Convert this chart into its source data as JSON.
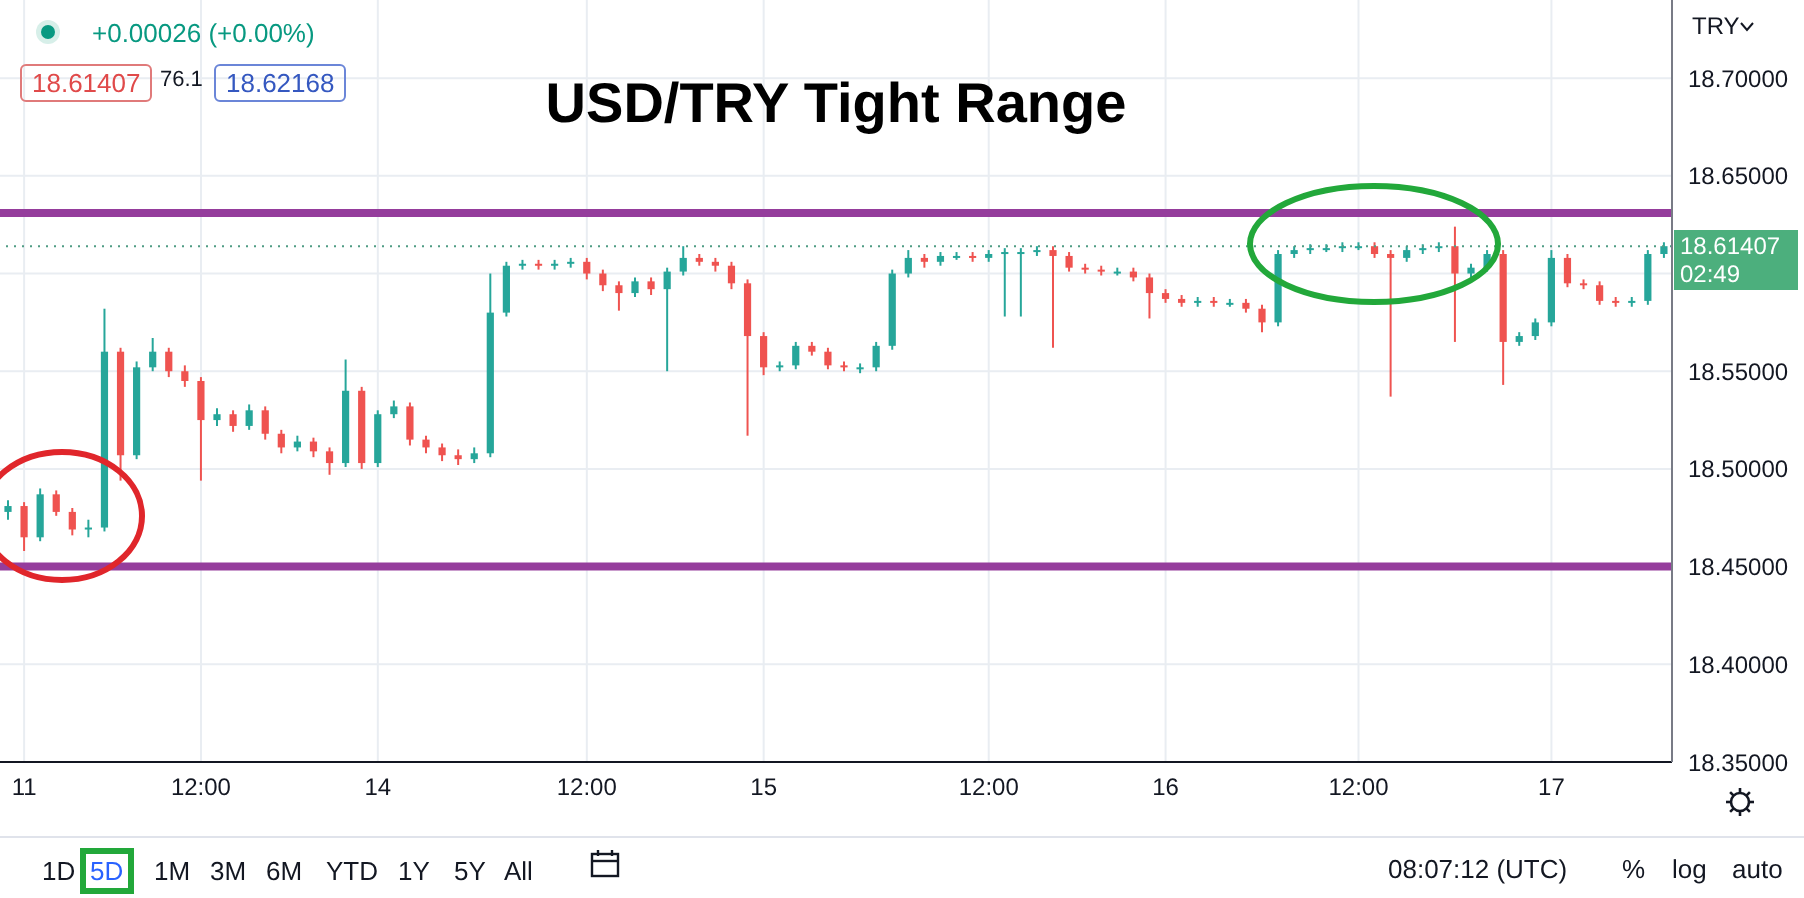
{
  "chart_data": {
    "type": "candlestick",
    "title": "USD/TRY Tight Range",
    "ylabel": "TRY",
    "categories": [
      null,
      "11",
      null,
      null,
      null,
      null,
      null,
      null,
      null,
      null,
      null,
      null,
      "12:00",
      null,
      null,
      null,
      null,
      null,
      null,
      null,
      null,
      null,
      null,
      "14",
      null,
      null,
      null,
      null,
      null,
      null,
      null,
      null,
      null,
      null,
      null,
      null,
      "12:00",
      null,
      null,
      null,
      null,
      null,
      null,
      null,
      null,
      null,
      null,
      "15",
      null,
      null,
      null,
      null,
      null,
      null,
      null,
      null,
      null,
      null,
      null,
      null,
      null,
      "12:00",
      null,
      null,
      null,
      null,
      null,
      null,
      null,
      null,
      null,
      null,
      "16",
      null,
      null,
      null,
      null,
      null,
      null,
      null,
      null,
      null,
      null,
      null,
      "12:00",
      null,
      null,
      null,
      null,
      null,
      null,
      null,
      null,
      null,
      null,
      null,
      "17",
      null,
      null,
      null,
      null,
      null,
      null,
      null
    ],
    "ohlc": [
      [
        18.478,
        18.484,
        18.474,
        18.481
      ],
      [
        18.481,
        18.483,
        18.458,
        18.465
      ],
      [
        18.465,
        18.49,
        18.463,
        18.487
      ],
      [
        18.487,
        18.489,
        18.476,
        18.478
      ],
      [
        18.478,
        18.48,
        18.466,
        18.469
      ],
      [
        18.469,
        18.474,
        18.465,
        18.47
      ],
      [
        18.47,
        18.582,
        18.468,
        18.56
      ],
      [
        18.56,
        18.562,
        18.494,
        18.507
      ],
      [
        18.507,
        18.555,
        18.505,
        18.552
      ],
      [
        18.552,
        18.567,
        18.55,
        18.56
      ],
      [
        18.56,
        18.562,
        18.547,
        18.55
      ],
      [
        18.55,
        18.553,
        18.542,
        18.545
      ],
      [
        18.545,
        18.547,
        18.494,
        18.525
      ],
      [
        18.525,
        18.531,
        18.522,
        18.528
      ],
      [
        18.528,
        18.53,
        18.519,
        18.522
      ],
      [
        18.522,
        18.533,
        18.52,
        18.53
      ],
      [
        18.53,
        18.532,
        18.515,
        18.518
      ],
      [
        18.518,
        18.52,
        18.508,
        18.511
      ],
      [
        18.511,
        18.517,
        18.509,
        18.514
      ],
      [
        18.514,
        18.516,
        18.506,
        18.509
      ],
      [
        18.509,
        18.511,
        18.497,
        18.503
      ],
      [
        18.503,
        18.556,
        18.501,
        18.54
      ],
      [
        18.54,
        18.542,
        18.5,
        18.503
      ],
      [
        18.503,
        18.53,
        18.501,
        18.528
      ],
      [
        18.528,
        18.535,
        18.526,
        18.532
      ],
      [
        18.532,
        18.534,
        18.512,
        18.515
      ],
      [
        18.515,
        18.517,
        18.508,
        18.511
      ],
      [
        18.511,
        18.513,
        18.504,
        18.507
      ],
      [
        18.507,
        18.51,
        18.502,
        18.505
      ],
      [
        18.505,
        18.511,
        18.503,
        18.508
      ],
      [
        18.508,
        18.6,
        18.506,
        18.58
      ],
      [
        18.58,
        18.606,
        18.578,
        18.604
      ],
      [
        18.604,
        18.607,
        18.602,
        18.605
      ],
      [
        18.605,
        18.607,
        18.602,
        18.604
      ],
      [
        18.604,
        18.607,
        18.602,
        18.605
      ],
      [
        18.605,
        18.608,
        18.603,
        18.606
      ],
      [
        18.606,
        18.608,
        18.597,
        18.6
      ],
      [
        18.6,
        18.602,
        18.591,
        18.594
      ],
      [
        18.594,
        18.596,
        18.581,
        18.59
      ],
      [
        18.59,
        18.598,
        18.588,
        18.596
      ],
      [
        18.596,
        18.598,
        18.589,
        18.592
      ],
      [
        18.592,
        18.603,
        18.55,
        18.601
      ],
      [
        18.601,
        18.614,
        18.599,
        18.608
      ],
      [
        18.608,
        18.61,
        18.604,
        18.606
      ],
      [
        18.606,
        18.608,
        18.601,
        18.604
      ],
      [
        18.604,
        18.606,
        18.592,
        18.595
      ],
      [
        18.595,
        18.597,
        18.517,
        18.568
      ],
      [
        18.568,
        18.57,
        18.548,
        18.552
      ],
      [
        18.552,
        18.555,
        18.55,
        18.553
      ],
      [
        18.553,
        18.565,
        18.551,
        18.563
      ],
      [
        18.563,
        18.565,
        18.558,
        18.56
      ],
      [
        18.56,
        18.562,
        18.551,
        18.553
      ],
      [
        18.553,
        18.555,
        18.55,
        18.552
      ],
      [
        18.552,
        18.554,
        18.549,
        18.552
      ],
      [
        18.552,
        18.565,
        18.55,
        18.563
      ],
      [
        18.563,
        18.602,
        18.561,
        18.6
      ],
      [
        18.6,
        18.612,
        18.598,
        18.608
      ],
      [
        18.608,
        18.61,
        18.603,
        18.606
      ],
      [
        18.606,
        18.611,
        18.604,
        18.609
      ],
      [
        18.609,
        18.611,
        18.607,
        18.609
      ],
      [
        18.609,
        18.611,
        18.606,
        18.608
      ],
      [
        18.608,
        18.612,
        18.606,
        18.61
      ],
      [
        18.61,
        18.613,
        18.578,
        18.611
      ],
      [
        18.611,
        18.613,
        18.578,
        18.611
      ],
      [
        18.611,
        18.614,
        18.609,
        18.612
      ],
      [
        18.612,
        18.614,
        18.562,
        18.609
      ],
      [
        18.609,
        18.611,
        18.601,
        18.603
      ],
      [
        18.603,
        18.605,
        18.6,
        18.602
      ],
      [
        18.602,
        18.604,
        18.599,
        18.601
      ],
      [
        18.601,
        18.603,
        18.599,
        18.601
      ],
      [
        18.601,
        18.603,
        18.596,
        18.598
      ],
      [
        18.598,
        18.6,
        18.577,
        18.59
      ],
      [
        18.59,
        18.592,
        18.585,
        18.587
      ],
      [
        18.587,
        18.589,
        18.583,
        18.585
      ],
      [
        18.585,
        18.588,
        18.583,
        18.586
      ],
      [
        18.586,
        18.588,
        18.583,
        18.585
      ],
      [
        18.585,
        18.587,
        18.583,
        18.585
      ],
      [
        18.585,
        18.587,
        18.58,
        18.582
      ],
      [
        18.582,
        18.584,
        18.57,
        18.575
      ],
      [
        18.575,
        18.612,
        18.573,
        18.61
      ],
      [
        18.61,
        18.614,
        18.608,
        18.612
      ],
      [
        18.612,
        18.615,
        18.61,
        18.613
      ],
      [
        18.613,
        18.615,
        18.611,
        18.613
      ],
      [
        18.613,
        18.616,
        18.611,
        18.614
      ],
      [
        18.614,
        18.616,
        18.612,
        18.614
      ],
      [
        18.614,
        18.616,
        18.608,
        18.61
      ],
      [
        18.61,
        18.612,
        18.537,
        18.608
      ],
      [
        18.608,
        18.614,
        18.606,
        18.612
      ],
      [
        18.612,
        18.615,
        18.61,
        18.613
      ],
      [
        18.613,
        18.616,
        18.611,
        18.614
      ],
      [
        18.614,
        18.624,
        18.565,
        18.6
      ],
      [
        18.6,
        18.605,
        18.598,
        18.603
      ],
      [
        18.603,
        18.612,
        18.601,
        18.61
      ],
      [
        18.61,
        18.612,
        18.543,
        18.565
      ],
      [
        18.565,
        18.57,
        18.563,
        18.568
      ],
      [
        18.568,
        18.577,
        18.566,
        18.575
      ],
      [
        18.575,
        18.612,
        18.573,
        18.608
      ],
      [
        18.608,
        18.61,
        18.593,
        18.595
      ],
      [
        18.595,
        18.597,
        18.592,
        18.594
      ],
      [
        18.594,
        18.596,
        18.584,
        18.586
      ],
      [
        18.586,
        18.588,
        18.583,
        18.585
      ],
      [
        18.585,
        18.588,
        18.583,
        18.586
      ],
      [
        18.586,
        18.612,
        18.584,
        18.61
      ],
      [
        18.61,
        18.616,
        18.608,
        18.614
      ]
    ],
    "ylim": [
      18.35,
      18.74
    ],
    "yticks": [
      {
        "value": 18.35,
        "label": "18.35000"
      },
      {
        "value": 18.4,
        "label": "18.40000"
      },
      {
        "value": 18.45,
        "label": "18.45000"
      },
      {
        "value": 18.5,
        "label": "18.50000"
      },
      {
        "value": 18.55,
        "label": "18.55000"
      },
      {
        "value": 18.6,
        "label": null
      },
      {
        "value": 18.65,
        "label": "18.65000"
      },
      {
        "value": 18.7,
        "label": "18.70000"
      }
    ],
    "grid": true,
    "ref_lines": [
      {
        "axis": "y",
        "value": 18.631,
        "color": "#953d9c",
        "line_style": "solid"
      },
      {
        "axis": "y",
        "value": 18.45,
        "color": "#953d9c",
        "line_style": "solid"
      },
      {
        "axis": "y",
        "value": 18.614,
        "color": "#4f9c84",
        "line_style": "dotted"
      }
    ],
    "annotations": [
      "+0.00026 (+0.00%)",
      "18.61407",
      "76.1",
      "18.62168",
      "18.61407",
      "02:49",
      "1D",
      "5D",
      "1M",
      "3M",
      "6M",
      "YTD",
      "1Y",
      "5Y",
      "All",
      "08:07:12 (UTC)",
      "%",
      "log",
      "auto"
    ]
  }
}
